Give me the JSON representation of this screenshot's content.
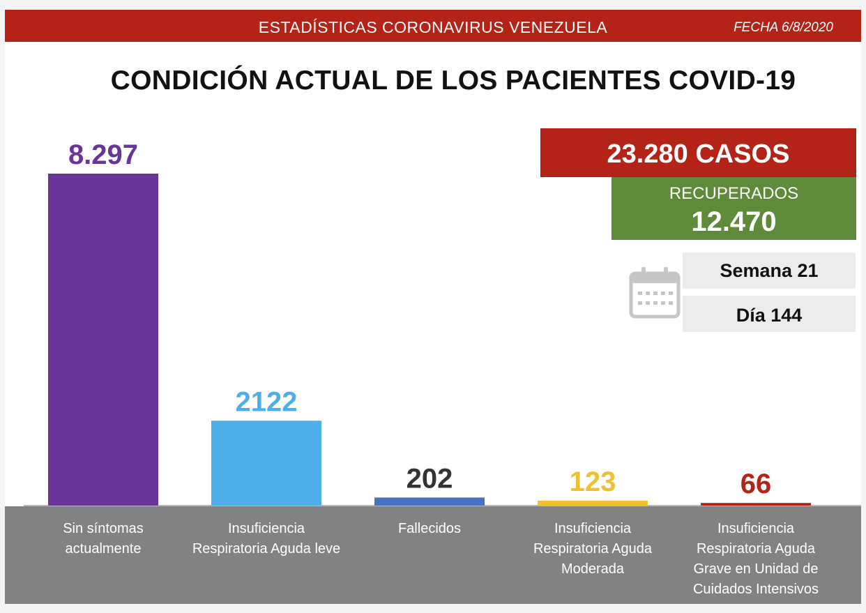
{
  "header": {
    "title": "ESTADÍSTICAS CORONAVIRUS VENEZUELA",
    "date": "FECHA 6/8/2020"
  },
  "main_title": "CONDICIÓN ACTUAL DE LOS PACIENTES COVID-19",
  "summary": {
    "cases": "23.280 CASOS",
    "recovered_label": "RECUPERADOS",
    "recovered_value": "12.470",
    "week": "Semana 21",
    "day": "Día 144",
    "calendar_icon": "calendar-icon"
  },
  "colors": {
    "header_red": "#b32317",
    "recovered_green": "#5e8a3a",
    "category_band": "#828282"
  },
  "chart_data": {
    "type": "bar",
    "categories": [
      [
        "Sin síntomas",
        "actualmente"
      ],
      [
        "Insuficiencia",
        "Respiratoria Aguda leve"
      ],
      [
        "Fallecidos"
      ],
      [
        "Insuficiencia",
        "Respiratoria Aguda",
        "Moderada"
      ],
      [
        "Insuficiencia",
        "Respiratoria Aguda",
        "Grave en Unidad de",
        "Cuidados Intensivos"
      ]
    ],
    "values": [
      8297,
      2122,
      202,
      123,
      66
    ],
    "value_labels": [
      "8.297",
      "2122",
      "202",
      "123",
      "66"
    ],
    "bar_colors": [
      "#6a3598",
      "#4eaeea",
      "#4a6fc0",
      "#f0c030",
      "#b32317"
    ],
    "label_colors": [
      "#6a3598",
      "#4eaeea",
      "#333333",
      "#f0c030",
      "#b32317"
    ],
    "ylim": [
      0,
      8297
    ],
    "grid": false,
    "legend": "none"
  }
}
